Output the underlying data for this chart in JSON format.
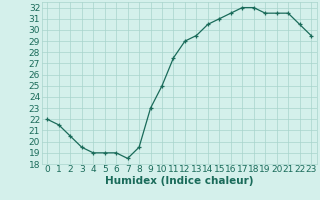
{
  "x": [
    0,
    1,
    2,
    3,
    4,
    5,
    6,
    7,
    8,
    9,
    10,
    11,
    12,
    13,
    14,
    15,
    16,
    17,
    18,
    19,
    20,
    21,
    22,
    23
  ],
  "y": [
    22.0,
    21.5,
    20.5,
    19.5,
    19.0,
    19.0,
    19.0,
    18.5,
    19.5,
    23.0,
    25.0,
    27.5,
    29.0,
    29.5,
    30.5,
    31.0,
    31.5,
    32.0,
    32.0,
    31.5,
    31.5,
    31.5,
    30.5,
    29.5
  ],
  "xlabel": "Humidex (Indice chaleur)",
  "xlim": [
    -0.5,
    23.5
  ],
  "ylim": [
    18,
    32.5
  ],
  "yticks": [
    18,
    19,
    20,
    21,
    22,
    23,
    24,
    25,
    26,
    27,
    28,
    29,
    30,
    31,
    32
  ],
  "xticks": [
    0,
    1,
    2,
    3,
    4,
    5,
    6,
    7,
    8,
    9,
    10,
    11,
    12,
    13,
    14,
    15,
    16,
    17,
    18,
    19,
    20,
    21,
    22,
    23
  ],
  "line_color": "#1a6b5a",
  "marker": "+",
  "bg_color": "#d4f0eb",
  "grid_color": "#a8d4cc",
  "label_color": "#1a6b5a",
  "tick_fontsize": 6.5,
  "xlabel_fontsize": 7.5,
  "linewidth": 0.9,
  "markersize": 3.5,
  "markeredgewidth": 0.9
}
